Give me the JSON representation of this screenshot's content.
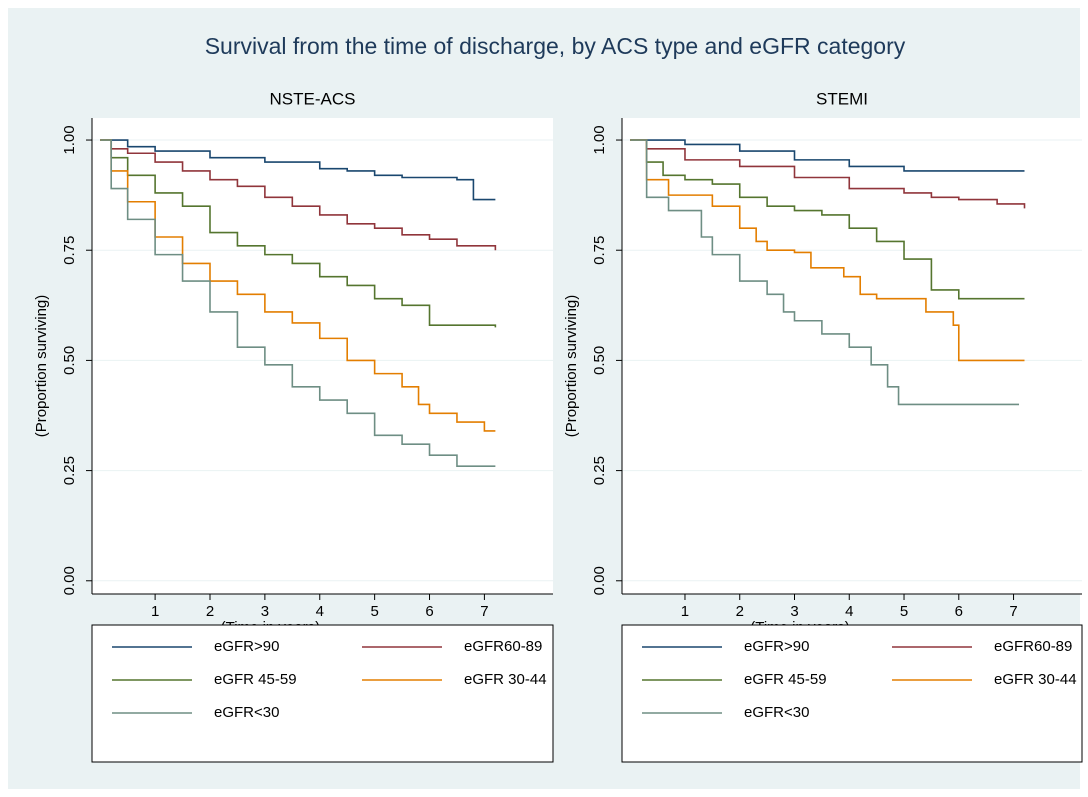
{
  "title": "Survival from the time of discharge, by ACS type and eGFR category",
  "chart_data": [
    {
      "type": "step",
      "title": "NSTE-ACS",
      "x_label": "(Time in years)",
      "y_label": "(Proportion surviving)",
      "xlim": [
        -0.15,
        8.25
      ],
      "ylim": [
        -0.03,
        1.05
      ],
      "xticks": [
        1,
        2,
        3,
        4,
        5,
        6,
        7
      ],
      "yticks": [
        {
          "value": 0,
          "label": "0.00"
        },
        {
          "value": 0.25,
          "label": "0.25"
        },
        {
          "value": 0.5,
          "label": "0.50"
        },
        {
          "value": 0.75,
          "label": "0.75"
        },
        {
          "value": 1,
          "label": "1.00"
        }
      ],
      "grid": true,
      "legend": "bottom",
      "series": [
        {
          "name": "eGFR>90",
          "color": "#1a476f",
          "x": [
            0,
            0.5,
            1,
            2,
            3,
            4,
            4.5,
            5,
            5.5,
            6,
            6.5,
            6.8,
            7.2
          ],
          "values": [
            1,
            0.985,
            0.975,
            0.96,
            0.95,
            0.935,
            0.93,
            0.92,
            0.915,
            0.915,
            0.91,
            0.865,
            0.865
          ]
        },
        {
          "name": "eGFR60-89",
          "color": "#90353b",
          "x": [
            0,
            0.2,
            0.5,
            1,
            1.5,
            2,
            2.5,
            3,
            3.5,
            4,
            4.5,
            5,
            5.5,
            6,
            6.5,
            7.2
          ],
          "values": [
            1,
            0.98,
            0.97,
            0.95,
            0.93,
            0.91,
            0.895,
            0.87,
            0.85,
            0.83,
            0.81,
            0.8,
            0.785,
            0.775,
            0.76,
            0.75
          ]
        },
        {
          "name": "eGFR 45-59",
          "color": "#55752f",
          "x": [
            0,
            0.2,
            0.5,
            1,
            1.5,
            2,
            2.5,
            3,
            3.5,
            4,
            4.5,
            5,
            5.5,
            6,
            7.2
          ],
          "values": [
            1,
            0.96,
            0.92,
            0.88,
            0.85,
            0.79,
            0.76,
            0.74,
            0.72,
            0.69,
            0.67,
            0.64,
            0.625,
            0.58,
            0.575
          ]
        },
        {
          "name": "eGFR 30-44",
          "color": "#e37e00",
          "x": [
            0,
            0.2,
            0.5,
            1,
            1.5,
            2,
            2.5,
            3,
            3.5,
            4,
            4.5,
            5,
            5.5,
            5.8,
            6,
            6.5,
            7,
            7.2
          ],
          "values": [
            1,
            0.93,
            0.86,
            0.78,
            0.72,
            0.68,
            0.65,
            0.61,
            0.585,
            0.55,
            0.5,
            0.47,
            0.44,
            0.4,
            0.38,
            0.36,
            0.34,
            0.34
          ]
        },
        {
          "name": "eGFR<30",
          "color": "#6e8e84",
          "x": [
            0,
            0.2,
            0.5,
            1,
            1.5,
            2,
            2.5,
            3,
            3.5,
            4,
            4.5,
            5,
            5.5,
            6,
            6.5,
            7.2
          ],
          "values": [
            1,
            0.89,
            0.82,
            0.74,
            0.68,
            0.61,
            0.53,
            0.49,
            0.44,
            0.41,
            0.38,
            0.33,
            0.31,
            0.285,
            0.26,
            0.26
          ]
        }
      ]
    },
    {
      "type": "step",
      "title": "STEMI",
      "x_label": "(Time in years)",
      "y_label": "(Proportion surviving)",
      "xlim": [
        -0.15,
        8.25
      ],
      "ylim": [
        -0.03,
        1.05
      ],
      "xticks": [
        1,
        2,
        3,
        4,
        5,
        6,
        7
      ],
      "yticks": [
        {
          "value": 0,
          "label": "0.00"
        },
        {
          "value": 0.25,
          "label": "0.25"
        },
        {
          "value": 0.5,
          "label": "0.50"
        },
        {
          "value": 0.75,
          "label": "0.75"
        },
        {
          "value": 1,
          "label": "1.00"
        }
      ],
      "grid": true,
      "legend": "bottom",
      "series": [
        {
          "name": "eGFR>90",
          "color": "#1a476f",
          "x": [
            0,
            1,
            2,
            3,
            4,
            5,
            7.2
          ],
          "values": [
            1,
            0.99,
            0.975,
            0.955,
            0.94,
            0.93,
            0.93
          ]
        },
        {
          "name": "eGFR60-89",
          "color": "#90353b",
          "x": [
            0,
            0.3,
            1,
            2,
            3,
            4,
            5,
            5.5,
            6,
            6.7,
            7.2
          ],
          "values": [
            1,
            0.98,
            0.955,
            0.94,
            0.915,
            0.89,
            0.88,
            0.87,
            0.865,
            0.855,
            0.845
          ]
        },
        {
          "name": "eGFR 45-59",
          "color": "#55752f",
          "x": [
            0,
            0.3,
            0.6,
            1,
            1.5,
            2,
            2.5,
            3,
            3.5,
            4,
            4.5,
            5,
            5.5,
            6,
            7.2
          ],
          "values": [
            1,
            0.95,
            0.92,
            0.91,
            0.9,
            0.87,
            0.85,
            0.84,
            0.83,
            0.8,
            0.77,
            0.73,
            0.66,
            0.64,
            0.64
          ]
        },
        {
          "name": "eGFR 30-44",
          "color": "#e37e00",
          "x": [
            0,
            0.3,
            0.7,
            1,
            1.5,
            2,
            2.3,
            2.5,
            3,
            3.3,
            3.9,
            4.2,
            4.5,
            5,
            5.4,
            5.9,
            6,
            7.2
          ],
          "values": [
            1,
            0.91,
            0.875,
            0.875,
            0.85,
            0.8,
            0.77,
            0.75,
            0.745,
            0.71,
            0.69,
            0.65,
            0.64,
            0.64,
            0.61,
            0.58,
            0.5,
            0.5
          ]
        },
        {
          "name": "eGFR<30",
          "color": "#6e8e84",
          "x": [
            0,
            0.3,
            0.7,
            1,
            1.3,
            1.5,
            2,
            2.5,
            2.8,
            3,
            3.5,
            4,
            4.4,
            4.7,
            4.9,
            7.1
          ],
          "values": [
            1,
            0.87,
            0.84,
            0.84,
            0.78,
            0.74,
            0.68,
            0.65,
            0.61,
            0.59,
            0.56,
            0.53,
            0.49,
            0.44,
            0.4,
            0.4
          ]
        }
      ]
    }
  ]
}
